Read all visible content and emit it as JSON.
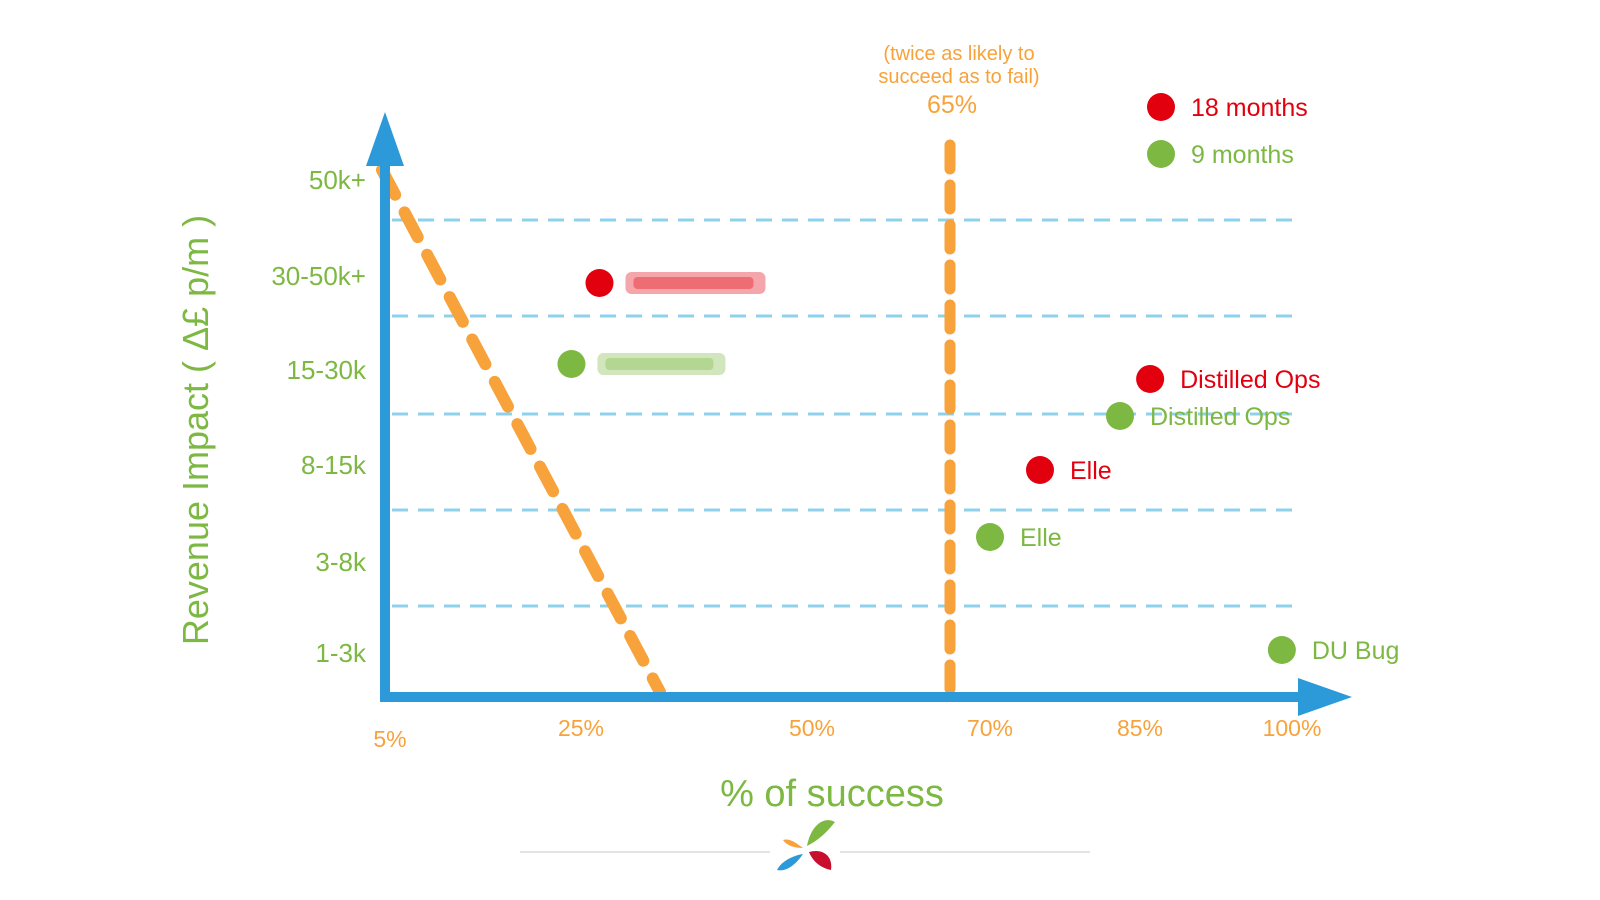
{
  "chart_data": {
    "type": "scatter",
    "xlabel": "% of success",
    "ylabel": "Revenue Impact ( Δ£ p/m )",
    "x_ticks": [
      "5%",
      "25%",
      "50%",
      "70%",
      "85%",
      "100%"
    ],
    "y_ticks": [
      "1-3k",
      "3-8k",
      "8-15k",
      "15-30k",
      "30-50k+",
      "50k+"
    ],
    "threshold": {
      "x": 65,
      "label": "65%",
      "note_line1": "(twice as likely to",
      "note_line2": "succeed as to fail)"
    },
    "grid": "horizontal dashed",
    "legend_position": "top-right",
    "series": [
      {
        "name": "18 months",
        "color": "#e2000f",
        "points": [
          {
            "label": "",
            "x": 27,
            "y": "30-50k+",
            "redacted": true
          },
          {
            "label": "Distilled Ops",
            "x": 86,
            "y": "15-30k"
          },
          {
            "label": "Elle",
            "x": 75,
            "y": "8-15k"
          }
        ]
      },
      {
        "name": "9 months",
        "color": "#7cb842",
        "points": [
          {
            "label": "",
            "x": 24,
            "y": "15-30k",
            "redacted": true
          },
          {
            "label": "Distilled Ops",
            "x": 83,
            "y": "15-30k"
          },
          {
            "label": "Elle",
            "x": 70,
            "y": "3-8k"
          },
          {
            "label": "DU Bug",
            "x": 99,
            "y": "1-3k"
          }
        ]
      }
    ],
    "colors": {
      "axis": "#2c9ad8",
      "grid": "#8fd0ea",
      "threshold": "#f7a23b",
      "ticks_x": "#f7a23b",
      "ticks_y": "#7cb842"
    }
  }
}
